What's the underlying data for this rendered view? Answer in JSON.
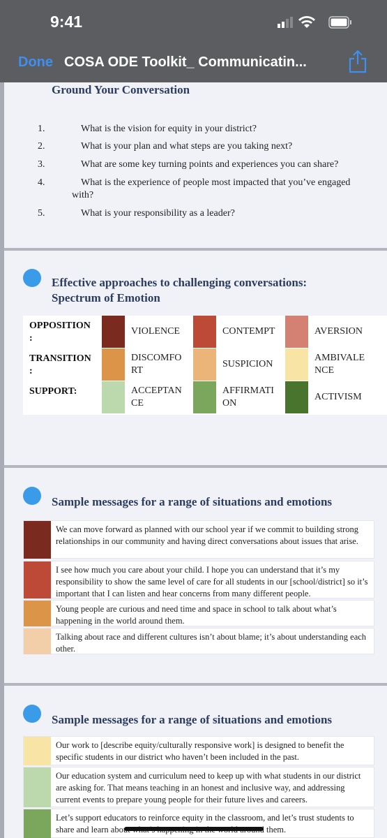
{
  "status_bar": {
    "time": "9:41"
  },
  "nav": {
    "done": "Done",
    "title": "COSA ODE Toolkit_ Communicatin..."
  },
  "sections": [
    {
      "heading": "Ground Your Conversation",
      "list": [
        {
          "number": "1.",
          "text": "What is the vision for equity in your district?"
        },
        {
          "number": "2.",
          "text": "What is your plan and what steps are you taking next?"
        },
        {
          "number": "3.",
          "text": "What are some key turning points and experiences you can share?"
        },
        {
          "number": "4.",
          "text": "What is the experience of people most impacted that you’ve engaged with?"
        },
        {
          "number": "5.",
          "text": "What is your responsibility as a leader?"
        }
      ]
    },
    {
      "heading": "Effective approaches to challenging conversations: Spectrum of Emotion",
      "table": [
        {
          "label": "OPPOSITION :",
          "cells": [
            {
              "color": "#7a2a1e",
              "text": "VIOLENCE"
            },
            {
              "color": "#bd4a37",
              "text": "CONTEMPT"
            },
            {
              "color": "#d48174",
              "text": "AVERSION"
            }
          ]
        },
        {
          "label": "TRANSITION :",
          "cells": [
            {
              "color": "#dc9448",
              "text": "DISCOMFORT"
            },
            {
              "color": "#ebb57a",
              "text": "SUSPICION"
            },
            {
              "color": "#f8e4a4",
              "text": "AMBIVALENCE"
            }
          ]
        },
        {
          "label": "SUPPORT:",
          "cells": [
            {
              "color": "#bcd9ad",
              "text": "ACCEPTANCE"
            },
            {
              "color": "#7ba75d",
              "text": "AFFIRMATION"
            },
            {
              "color": "#48742d",
              "text": "ACTIVISM"
            }
          ]
        }
      ]
    },
    {
      "heading": "Sample messages for a range of situations and emotions",
      "messages": [
        {
          "color": "#7a2a1e",
          "text": "We can move forward as planned with our school year if we commit to building strong relationships in our community and having direct conversations about issues that arise."
        },
        {
          "color": "#bd4a37",
          "text": "I see how much you care about your child. I hope you can understand that it’s my responsibility to show the same level of care for all students in our [school/district] so it’s important that I can listen and hear concerns from many different people."
        },
        {
          "color": "#dc9448",
          "text": "Young people are curious and need time and space in school to talk about what’s happening in the world around them."
        },
        {
          "color": "#f2cfa8",
          "text": "Talking about race and different cultures isn’t about blame; it’s about understanding each other."
        }
      ]
    },
    {
      "heading": "Sample messages for a range of situations and emotions",
      "messages": [
        {
          "color": "#f8e4a4",
          "text": "Our work to [describe equity/culturally responsive work] is designed to benefit the specific students in our district who haven’t been included in the past."
        },
        {
          "color": "#bcd9ad",
          "text": "Our education system and curriculum need to keep up with what students in our district are asking for. That means teaching in an honest and inclusive way, and addressing current events to prepare young people for their future lives and careers."
        },
        {
          "color": "#7ba75d",
          "text": "Let’s support educators to reinforce equity in the classroom, and let’s trust students to share and learn about what’s happening in the world around them."
        }
      ]
    }
  ]
}
